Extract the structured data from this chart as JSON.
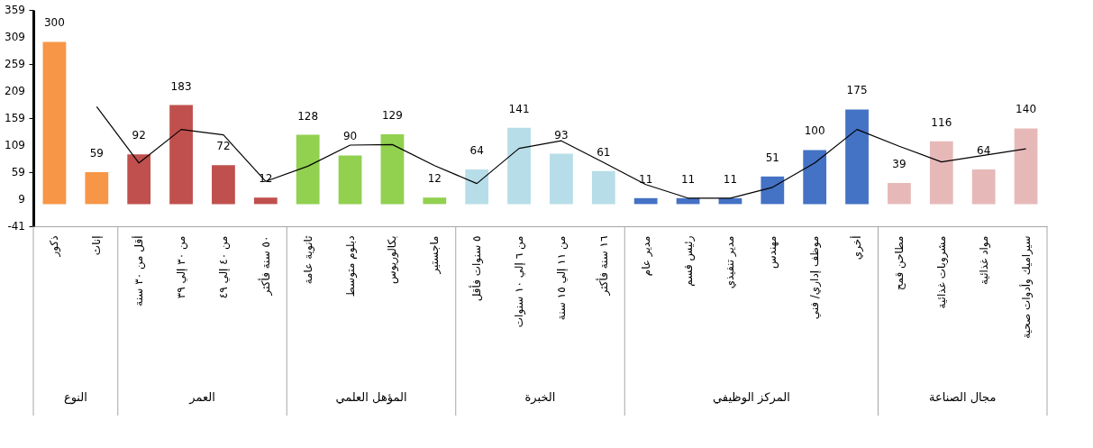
{
  "chart_data": {
    "type": "bar",
    "categories": [
      "ذكور",
      "إناث",
      "أقل من ٣٠ سنة",
      "من ٣٠ إلي ٣٩",
      "من ٤٠ إلي ٤٩",
      "٥٠ سنة فأكثر",
      "ثانوية عامة",
      "دبلوم متوسط",
      "بكالوريوس",
      "ماجستير",
      "٥ سنوات فأقل",
      "من ٦ إلي ١٠ سنوات",
      "من ١١ إلي ١٥ سنة",
      "١٦ سنة فأكثر",
      "مدير عام",
      "رئيس قسم",
      "مدير تنفيذي",
      "مهندس",
      "موظف إداري/ فني",
      "أخري",
      "مطاحن قمح",
      "مشروبات غذائية",
      "مواد غذائية",
      "سيراميك وأدوات صحية"
    ],
    "series": [
      {
        "colors": [
          "#f79646",
          "#f79646",
          "#c0504d",
          "#c0504d",
          "#c0504d",
          "#c0504d",
          "#92d050",
          "#92d050",
          "#92d050",
          "#92d050",
          "#b7dee8",
          "#b7dee8",
          "#b7dee8",
          "#b7dee8",
          "#4472c4",
          "#4472c4",
          "#4472c4",
          "#4472c4",
          "#4472c4",
          "#4472c4",
          "#e6b9b8",
          "#e6b9b8",
          "#e6b9b8",
          "#e6b9b8"
        ],
        "values": [
          300,
          59,
          92,
          183,
          72,
          12,
          128,
          90,
          129,
          12,
          64,
          141,
          93,
          61,
          11,
          11,
          11,
          51,
          100,
          175,
          39,
          116,
          64,
          140
        ],
        "value_labels": [
          "300",
          "59",
          "92",
          "183",
          "72",
          "12",
          "128",
          "90",
          "129",
          "12",
          "64",
          "141",
          "93",
          "61",
          "11",
          "11",
          "11",
          "51",
          "100",
          "175",
          "39",
          "116",
          "64",
          "140"
        ]
      },
      {
        "type": "line",
        "color": "#000000",
        "values": [
          null,
          180,
          76,
          138,
          128,
          42,
          70,
          109,
          110,
          71,
          38,
          103,
          117,
          77,
          36,
          11,
          11,
          31,
          76,
          138,
          107,
          78,
          90,
          102
        ]
      }
    ],
    "ylim": [
      -41,
      359
    ],
    "yticks": [
      -41,
      9,
      59,
      109,
      159,
      209,
      259,
      309,
      359
    ],
    "grid": false,
    "annotations": [
      "النوع",
      "العمر",
      "المؤهل العلمي",
      "الخبرة",
      "المركز الوظيفي",
      "مجال الصناعة"
    ]
  }
}
